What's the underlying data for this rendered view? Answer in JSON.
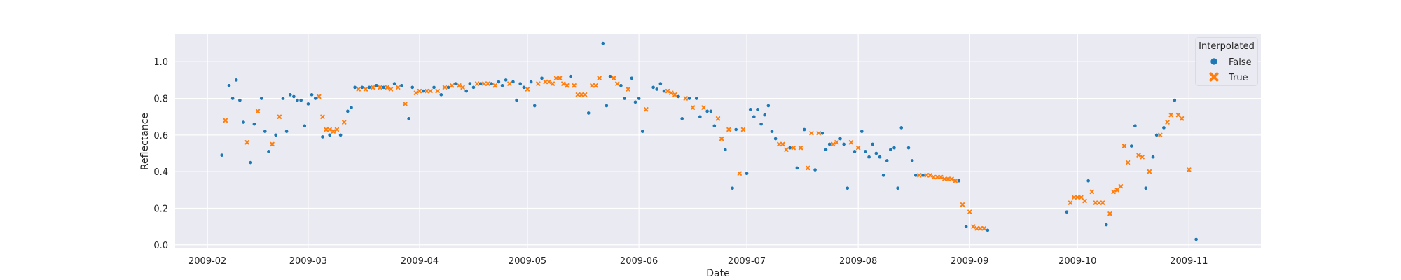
{
  "chart_data": {
    "type": "scatter",
    "title": "",
    "xlabel": "Date",
    "ylabel": "Reflectance",
    "x_axis": "date",
    "xlim": [
      "2009-01-23",
      "2009-11-21"
    ],
    "ylim": [
      -0.02,
      1.15
    ],
    "x_ticks": [
      "2009-02-01",
      "2009-03-01",
      "2009-04-01",
      "2009-05-01",
      "2009-06-01",
      "2009-07-01",
      "2009-08-01",
      "2009-09-01",
      "2009-10-01",
      "2009-11-01"
    ],
    "x_tick_labels": [
      "2009-02",
      "2009-03",
      "2009-04",
      "2009-05",
      "2009-06",
      "2009-07",
      "2009-08",
      "2009-09",
      "2009-10",
      "2009-11"
    ],
    "y_ticks": [
      0.0,
      0.2,
      0.4,
      0.6,
      0.8,
      1.0
    ],
    "y_tick_labels": [
      "0.0",
      "0.2",
      "0.4",
      "0.6",
      "0.8",
      "1.0"
    ],
    "grid": true,
    "style": "seaborn-darkgrid",
    "legend": {
      "title": "Interpolated",
      "placement": "top-right",
      "entries": [
        {
          "label": "False",
          "marker": "circle",
          "color": "#1f77b4"
        },
        {
          "label": "True",
          "marker": "x",
          "color": "#ff7f0e"
        }
      ]
    },
    "series": [
      {
        "name": "False",
        "marker": "circle",
        "color": "#1f77b4",
        "points": [
          [
            "2009-02-05",
            0.49
          ],
          [
            "2009-02-07",
            0.87
          ],
          [
            "2009-02-08",
            0.8
          ],
          [
            "2009-02-09",
            0.9
          ],
          [
            "2009-02-10",
            0.79
          ],
          [
            "2009-02-11",
            0.67
          ],
          [
            "2009-02-13",
            0.45
          ],
          [
            "2009-02-14",
            0.66
          ],
          [
            "2009-02-16",
            0.8
          ],
          [
            "2009-02-17",
            0.62
          ],
          [
            "2009-02-18",
            0.51
          ],
          [
            "2009-02-20",
            0.6
          ],
          [
            "2009-02-22",
            0.8
          ],
          [
            "2009-02-23",
            0.62
          ],
          [
            "2009-02-24",
            0.82
          ],
          [
            "2009-02-25",
            0.81
          ],
          [
            "2009-02-26",
            0.79
          ],
          [
            "2009-02-27",
            0.79
          ],
          [
            "2009-02-28",
            0.65
          ],
          [
            "2009-03-01",
            0.77
          ],
          [
            "2009-03-02",
            0.82
          ],
          [
            "2009-03-03",
            0.8
          ],
          [
            "2009-03-05",
            0.59
          ],
          [
            "2009-03-07",
            0.6
          ],
          [
            "2009-03-10",
            0.6
          ],
          [
            "2009-03-12",
            0.73
          ],
          [
            "2009-03-13",
            0.75
          ],
          [
            "2009-03-14",
            0.86
          ],
          [
            "2009-03-16",
            0.86
          ],
          [
            "2009-03-18",
            0.86
          ],
          [
            "2009-03-20",
            0.87
          ],
          [
            "2009-03-22",
            0.86
          ],
          [
            "2009-03-25",
            0.88
          ],
          [
            "2009-03-27",
            0.87
          ],
          [
            "2009-03-29",
            0.69
          ],
          [
            "2009-03-30",
            0.86
          ],
          [
            "2009-04-02",
            0.84
          ],
          [
            "2009-04-05",
            0.86
          ],
          [
            "2009-04-07",
            0.82
          ],
          [
            "2009-04-09",
            0.86
          ],
          [
            "2009-04-11",
            0.88
          ],
          [
            "2009-04-14",
            0.84
          ],
          [
            "2009-04-15",
            0.88
          ],
          [
            "2009-04-16",
            0.86
          ],
          [
            "2009-04-18",
            0.88
          ],
          [
            "2009-04-21",
            0.88
          ],
          [
            "2009-04-23",
            0.89
          ],
          [
            "2009-04-24",
            0.87
          ],
          [
            "2009-04-25",
            0.9
          ],
          [
            "2009-04-27",
            0.89
          ],
          [
            "2009-04-28",
            0.79
          ],
          [
            "2009-04-29",
            0.88
          ],
          [
            "2009-04-30",
            0.86
          ],
          [
            "2009-05-02",
            0.89
          ],
          [
            "2009-05-03",
            0.76
          ],
          [
            "2009-05-05",
            0.91
          ],
          [
            "2009-05-13",
            0.92
          ],
          [
            "2009-05-18",
            0.72
          ],
          [
            "2009-05-22",
            1.1
          ],
          [
            "2009-05-23",
            0.76
          ],
          [
            "2009-05-24",
            0.92
          ],
          [
            "2009-05-27",
            0.87
          ],
          [
            "2009-05-28",
            0.8
          ],
          [
            "2009-05-30",
            0.91
          ],
          [
            "2009-05-31",
            0.78
          ],
          [
            "2009-06-01",
            0.8
          ],
          [
            "2009-06-02",
            0.62
          ],
          [
            "2009-06-05",
            0.86
          ],
          [
            "2009-06-06",
            0.85
          ],
          [
            "2009-06-07",
            0.88
          ],
          [
            "2009-06-08",
            0.84
          ],
          [
            "2009-06-12",
            0.81
          ],
          [
            "2009-06-13",
            0.69
          ],
          [
            "2009-06-15",
            0.8
          ],
          [
            "2009-06-17",
            0.8
          ],
          [
            "2009-06-18",
            0.7
          ],
          [
            "2009-06-20",
            0.73
          ],
          [
            "2009-06-21",
            0.73
          ],
          [
            "2009-06-22",
            0.65
          ],
          [
            "2009-06-25",
            0.52
          ],
          [
            "2009-06-27",
            0.31
          ],
          [
            "2009-06-28",
            0.63
          ],
          [
            "2009-07-01",
            0.39
          ],
          [
            "2009-07-02",
            0.74
          ],
          [
            "2009-07-03",
            0.7
          ],
          [
            "2009-07-04",
            0.74
          ],
          [
            "2009-07-05",
            0.66
          ],
          [
            "2009-07-06",
            0.71
          ],
          [
            "2009-07-07",
            0.76
          ],
          [
            "2009-07-08",
            0.62
          ],
          [
            "2009-07-09",
            0.58
          ],
          [
            "2009-07-13",
            0.53
          ],
          [
            "2009-07-15",
            0.42
          ],
          [
            "2009-07-17",
            0.63
          ],
          [
            "2009-07-20",
            0.41
          ],
          [
            "2009-07-22",
            0.61
          ],
          [
            "2009-07-23",
            0.52
          ],
          [
            "2009-07-24",
            0.55
          ],
          [
            "2009-07-27",
            0.58
          ],
          [
            "2009-07-28",
            0.55
          ],
          [
            "2009-07-29",
            0.31
          ],
          [
            "2009-07-31",
            0.51
          ],
          [
            "2009-08-02",
            0.62
          ],
          [
            "2009-08-03",
            0.51
          ],
          [
            "2009-08-04",
            0.48
          ],
          [
            "2009-08-05",
            0.55
          ],
          [
            "2009-08-06",
            0.5
          ],
          [
            "2009-08-07",
            0.48
          ],
          [
            "2009-08-08",
            0.38
          ],
          [
            "2009-08-09",
            0.46
          ],
          [
            "2009-08-10",
            0.52
          ],
          [
            "2009-08-11",
            0.53
          ],
          [
            "2009-08-12",
            0.31
          ],
          [
            "2009-08-13",
            0.64
          ],
          [
            "2009-08-15",
            0.53
          ],
          [
            "2009-08-16",
            0.46
          ],
          [
            "2009-08-17",
            0.38
          ],
          [
            "2009-08-19",
            0.38
          ],
          [
            "2009-08-29",
            0.35
          ],
          [
            "2009-08-31",
            0.1
          ],
          [
            "2009-09-06",
            0.08
          ],
          [
            "2009-09-28",
            0.18
          ],
          [
            "2009-10-04",
            0.35
          ],
          [
            "2009-10-09",
            0.11
          ],
          [
            "2009-10-16",
            0.54
          ],
          [
            "2009-10-17",
            0.65
          ],
          [
            "2009-10-20",
            0.31
          ],
          [
            "2009-10-22",
            0.48
          ],
          [
            "2009-10-23",
            0.6
          ],
          [
            "2009-10-25",
            0.64
          ],
          [
            "2009-10-28",
            0.79
          ],
          [
            "2009-11-03",
            0.03
          ]
        ]
      },
      {
        "name": "True",
        "marker": "x",
        "color": "#ff7f0e",
        "points": [
          [
            "2009-02-06",
            0.68
          ],
          [
            "2009-02-12",
            0.56
          ],
          [
            "2009-02-15",
            0.73
          ],
          [
            "2009-02-19",
            0.55
          ],
          [
            "2009-02-21",
            0.7
          ],
          [
            "2009-03-04",
            0.81
          ],
          [
            "2009-03-05",
            0.7
          ],
          [
            "2009-03-06",
            0.63
          ],
          [
            "2009-03-07",
            0.63
          ],
          [
            "2009-03-08",
            0.62
          ],
          [
            "2009-03-09",
            0.63
          ],
          [
            "2009-03-11",
            0.67
          ],
          [
            "2009-03-15",
            0.85
          ],
          [
            "2009-03-17",
            0.85
          ],
          [
            "2009-03-19",
            0.86
          ],
          [
            "2009-03-21",
            0.86
          ],
          [
            "2009-03-23",
            0.86
          ],
          [
            "2009-03-24",
            0.85
          ],
          [
            "2009-03-26",
            0.86
          ],
          [
            "2009-03-28",
            0.77
          ],
          [
            "2009-03-31",
            0.83
          ],
          [
            "2009-04-01",
            0.84
          ],
          [
            "2009-04-03",
            0.84
          ],
          [
            "2009-04-04",
            0.84
          ],
          [
            "2009-04-06",
            0.84
          ],
          [
            "2009-04-08",
            0.86
          ],
          [
            "2009-04-10",
            0.87
          ],
          [
            "2009-04-12",
            0.87
          ],
          [
            "2009-04-13",
            0.86
          ],
          [
            "2009-04-17",
            0.88
          ],
          [
            "2009-04-19",
            0.88
          ],
          [
            "2009-04-20",
            0.88
          ],
          [
            "2009-04-22",
            0.87
          ],
          [
            "2009-04-26",
            0.88
          ],
          [
            "2009-05-01",
            0.85
          ],
          [
            "2009-05-04",
            0.88
          ],
          [
            "2009-05-06",
            0.89
          ],
          [
            "2009-05-07",
            0.89
          ],
          [
            "2009-05-08",
            0.88
          ],
          [
            "2009-05-09",
            0.91
          ],
          [
            "2009-05-10",
            0.91
          ],
          [
            "2009-05-11",
            0.88
          ],
          [
            "2009-05-12",
            0.87
          ],
          [
            "2009-05-14",
            0.87
          ],
          [
            "2009-05-15",
            0.82
          ],
          [
            "2009-05-16",
            0.82
          ],
          [
            "2009-05-17",
            0.82
          ],
          [
            "2009-05-19",
            0.87
          ],
          [
            "2009-05-20",
            0.87
          ],
          [
            "2009-05-21",
            0.91
          ],
          [
            "2009-05-25",
            0.91
          ],
          [
            "2009-05-26",
            0.88
          ],
          [
            "2009-05-29",
            0.85
          ],
          [
            "2009-06-03",
            0.74
          ],
          [
            "2009-06-09",
            0.84
          ],
          [
            "2009-06-10",
            0.83
          ],
          [
            "2009-06-11",
            0.82
          ],
          [
            "2009-06-14",
            0.8
          ],
          [
            "2009-06-16",
            0.75
          ],
          [
            "2009-06-19",
            0.75
          ],
          [
            "2009-06-23",
            0.69
          ],
          [
            "2009-06-24",
            0.58
          ],
          [
            "2009-06-26",
            0.63
          ],
          [
            "2009-06-29",
            0.39
          ],
          [
            "2009-06-30",
            0.63
          ],
          [
            "2009-07-10",
            0.55
          ],
          [
            "2009-07-11",
            0.55
          ],
          [
            "2009-07-12",
            0.52
          ],
          [
            "2009-07-14",
            0.53
          ],
          [
            "2009-07-16",
            0.53
          ],
          [
            "2009-07-18",
            0.42
          ],
          [
            "2009-07-19",
            0.61
          ],
          [
            "2009-07-21",
            0.61
          ],
          [
            "2009-07-25",
            0.55
          ],
          [
            "2009-07-26",
            0.56
          ],
          [
            "2009-07-30",
            0.56
          ],
          [
            "2009-08-01",
            0.53
          ],
          [
            "2009-08-18",
            0.38
          ],
          [
            "2009-08-20",
            0.38
          ],
          [
            "2009-08-21",
            0.38
          ],
          [
            "2009-08-22",
            0.37
          ],
          [
            "2009-08-23",
            0.37
          ],
          [
            "2009-08-24",
            0.37
          ],
          [
            "2009-08-25",
            0.36
          ],
          [
            "2009-08-26",
            0.36
          ],
          [
            "2009-08-27",
            0.36
          ],
          [
            "2009-08-28",
            0.35
          ],
          [
            "2009-08-30",
            0.22
          ],
          [
            "2009-09-01",
            0.18
          ],
          [
            "2009-09-02",
            0.1
          ],
          [
            "2009-09-03",
            0.09
          ],
          [
            "2009-09-04",
            0.09
          ],
          [
            "2009-09-05",
            0.09
          ],
          [
            "2009-09-29",
            0.23
          ],
          [
            "2009-09-30",
            0.26
          ],
          [
            "2009-10-01",
            0.26
          ],
          [
            "2009-10-02",
            0.26
          ],
          [
            "2009-10-03",
            0.24
          ],
          [
            "2009-10-05",
            0.29
          ],
          [
            "2009-10-06",
            0.23
          ],
          [
            "2009-10-07",
            0.23
          ],
          [
            "2009-10-08",
            0.23
          ],
          [
            "2009-10-10",
            0.17
          ],
          [
            "2009-10-11",
            0.29
          ],
          [
            "2009-10-12",
            0.3
          ],
          [
            "2009-10-13",
            0.32
          ],
          [
            "2009-10-14",
            0.54
          ],
          [
            "2009-10-15",
            0.45
          ],
          [
            "2009-10-18",
            0.49
          ],
          [
            "2009-10-19",
            0.48
          ],
          [
            "2009-10-21",
            0.4
          ],
          [
            "2009-10-24",
            0.6
          ],
          [
            "2009-10-26",
            0.67
          ],
          [
            "2009-10-27",
            0.71
          ],
          [
            "2009-10-29",
            0.71
          ],
          [
            "2009-10-30",
            0.69
          ],
          [
            "2009-11-01",
            0.41
          ]
        ]
      }
    ]
  }
}
